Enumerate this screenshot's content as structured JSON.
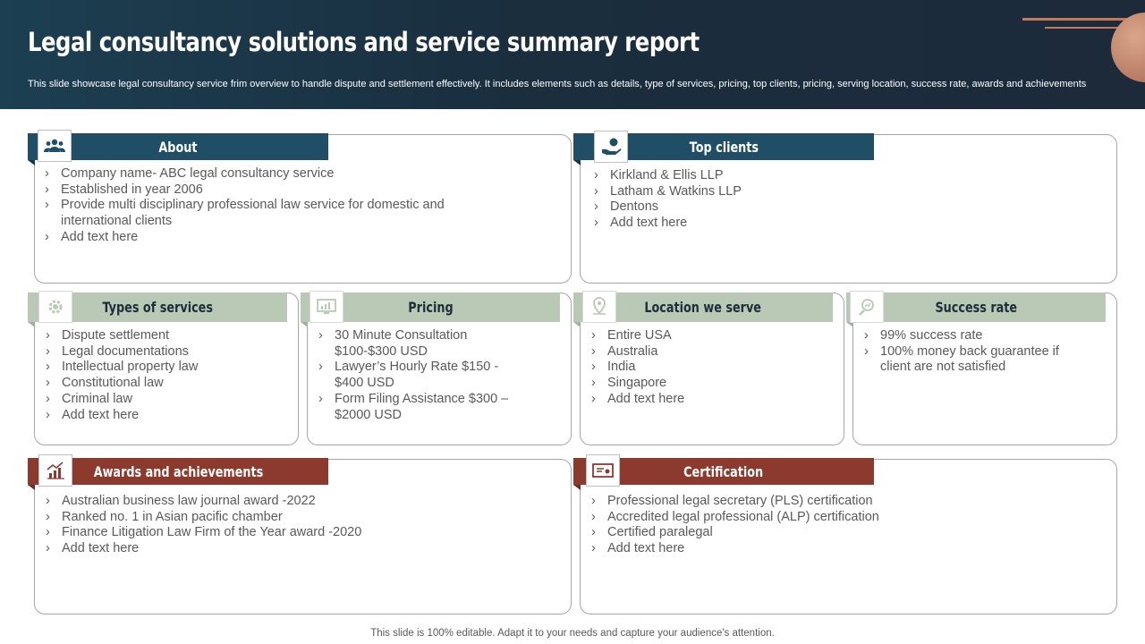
{
  "header": {
    "title": "Legal consultancy solutions and service summary report",
    "subtitle": "This slide showcase legal consultancy service frim overview to handle dispute and settlement effectively. It includes elements such as details, type of services, pricing, top clients, pricing, serving location, success rate, awards and achievements"
  },
  "about": {
    "title": "About",
    "icon": "people-group-icon",
    "items": [
      "Company name- ABC legal consultancy service",
      "Established in year 2006",
      "Provide multi disciplinary professional law service for domestic and international clients",
      "Add text here"
    ]
  },
  "top_clients": {
    "title": "Top clients",
    "icon": "hand-coin-icon",
    "items": [
      "Kirkland & Ellis LLP",
      "Latham & Watkins LLP",
      "Dentons",
      "Add text here"
    ]
  },
  "types_of_services": {
    "title": "Types of services",
    "icon": "gear-settings-icon",
    "items": [
      "Dispute settlement",
      "Legal documentations",
      "Intellectual property law",
      "Constitutional law",
      "Criminal law",
      "Add text here"
    ]
  },
  "pricing": {
    "title": "Pricing",
    "icon": "monitor-chart-icon",
    "items": [
      "30 Minute Consultation $100-$300 USD",
      "Lawyer’s Hourly Rate $150 - $400 USD",
      "Form Filing Assistance $300 – $2000 USD"
    ]
  },
  "location": {
    "title": "Location  we serve",
    "icon": "map-pin-icon",
    "items": [
      "Entire USA",
      "Australia",
      "India",
      "Singapore",
      "Add text here"
    ]
  },
  "success_rate": {
    "title": "Success rate",
    "icon": "magnifier-chart-icon",
    "items": [
      "99% success rate",
      "100% money back guarantee if client are not satisfied"
    ]
  },
  "awards": {
    "title": "Awards and achievements",
    "icon": "bar-chart-growth-icon",
    "items": [
      "Australian business law journal award -2022",
      "Ranked no. 1 in Asian pacific chamber",
      "Finance Litigation Law Firm of the Year award -2020",
      "Add text here"
    ]
  },
  "certification": {
    "title": "Certification",
    "icon": "certificate-icon",
    "items": [
      "Professional legal secretary (PLS) certification",
      "Accredited legal professional (ALP) certification",
      "Certified paralegal",
      "Add text here"
    ]
  },
  "footer": "This slide is 100% editable. Adapt it to your needs and capture your audience's attention.",
  "colors": {
    "header_bg": "#1c3f52",
    "blue_tab": "#1f4e66",
    "grey_tab": "#b9c9b6",
    "red_tab": "#8c3a2e",
    "accent": "#c27a5e"
  }
}
